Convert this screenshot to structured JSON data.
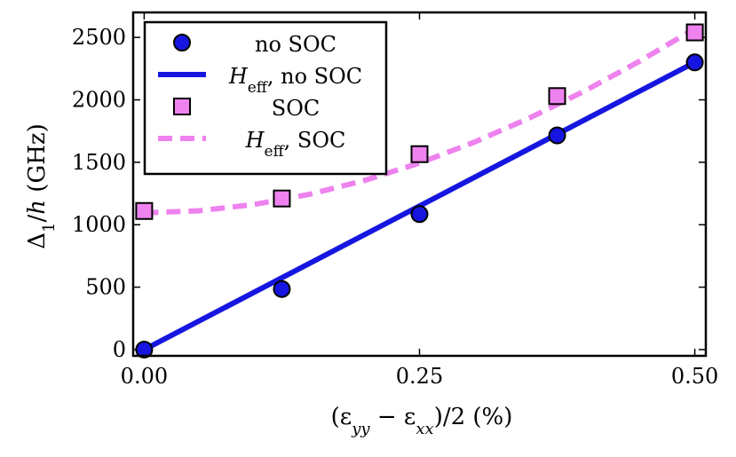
{
  "chart_data": {
    "type": "scatter",
    "xlabel": "(ε_yy − ε_xx)/2 (%)",
    "ylabel": "Δ1/h (GHz)",
    "xlim": [
      -0.01,
      0.51
    ],
    "ylim": [
      -50,
      2700
    ],
    "x_ticks": [
      0.0,
      0.25,
      0.5
    ],
    "x_tick_labels": [
      "0.00",
      "0.25",
      "0.50"
    ],
    "y_ticks": [
      0,
      500,
      1000,
      1500,
      2000,
      2500
    ],
    "y_tick_labels": [
      "0",
      "500",
      "1000",
      "1500",
      "2000",
      "2500"
    ],
    "legend_position": "top-left",
    "series": [
      {
        "name": "no SOC",
        "kind": "markers",
        "marker": "circle",
        "color": "#1616e0",
        "x": [
          0.0,
          0.125,
          0.25,
          0.375,
          0.5
        ],
        "y": [
          0,
          485,
          1085,
          1715,
          2300
        ]
      },
      {
        "name": "H_eff, no SOC",
        "kind": "line",
        "style": "solid",
        "color": "#1616e0",
        "x": [
          0.0,
          0.5
        ],
        "y": [
          0,
          2300
        ]
      },
      {
        "name": "SOC",
        "kind": "markers",
        "marker": "square",
        "color": "#ee82ee",
        "x": [
          0.0,
          0.125,
          0.25,
          0.375,
          0.5
        ],
        "y": [
          1110,
          1210,
          1565,
          2030,
          2540
        ]
      },
      {
        "name": "H_eff, SOC",
        "kind": "line",
        "style": "dashed",
        "color": "#ee82ee",
        "x": [
          0.0,
          0.05,
          0.1,
          0.15,
          0.2,
          0.25,
          0.3,
          0.35,
          0.4,
          0.45,
          0.5
        ],
        "y": [
          1095,
          1112,
          1162,
          1243,
          1354,
          1494,
          1662,
          1855,
          2071,
          2310,
          2570
        ]
      }
    ]
  }
}
